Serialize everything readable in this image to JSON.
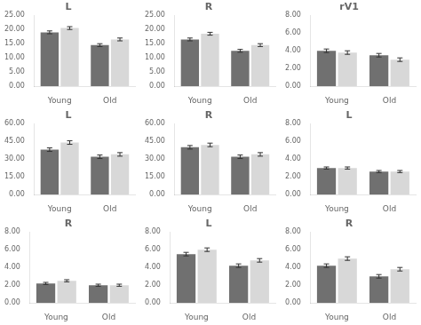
{
  "chart_data": [
    {
      "type": "bar",
      "title": "L",
      "categories": [
        "Young",
        "Old"
      ],
      "series": [
        {
          "color": "#707070",
          "values": [
            19.0,
            14.5
          ],
          "errors": [
            0.5,
            0.5
          ]
        },
        {
          "color": "#d8d8d8",
          "values": [
            20.5,
            16.5
          ],
          "errors": [
            0.5,
            0.5
          ]
        }
      ],
      "ylim": [
        0,
        25
      ],
      "yticks": [
        {
          "value": 0,
          "label": "0.00"
        },
        {
          "value": 5,
          "label": "5.00"
        },
        {
          "value": 10,
          "label": "10.00"
        },
        {
          "value": 15,
          "label": "15.00"
        },
        {
          "value": 20,
          "label": "20.00"
        },
        {
          "value": 25,
          "label": "25.00"
        }
      ],
      "grid": false
    },
    {
      "type": "bar",
      "title": "R",
      "categories": [
        "Young",
        "Old"
      ],
      "series": [
        {
          "color": "#707070",
          "values": [
            16.5,
            12.5
          ],
          "errors": [
            0.5,
            0.5
          ]
        },
        {
          "color": "#d8d8d8",
          "values": [
            18.5,
            14.5
          ],
          "errors": [
            0.5,
            0.5
          ]
        }
      ],
      "ylim": [
        0,
        25
      ],
      "yticks": [
        {
          "value": 0,
          "label": "0.00"
        },
        {
          "value": 5,
          "label": "5.00"
        },
        {
          "value": 10,
          "label": "10.00"
        },
        {
          "value": 15,
          "label": "15.00"
        },
        {
          "value": 20,
          "label": "20.00"
        },
        {
          "value": 25,
          "label": "25.00"
        }
      ],
      "grid": false
    },
    {
      "type": "bar",
      "title": "rV1",
      "categories": [
        "Young",
        "Old"
      ],
      "series": [
        {
          "color": "#707070",
          "values": [
            4.0,
            3.5
          ],
          "errors": [
            0.2,
            0.2
          ]
        },
        {
          "color": "#d8d8d8",
          "values": [
            3.8,
            3.0
          ],
          "errors": [
            0.2,
            0.2
          ]
        }
      ],
      "ylim": [
        0,
        8
      ],
      "yticks": [
        {
          "value": 0,
          "label": "0.00"
        },
        {
          "value": 2,
          "label": "2.00"
        },
        {
          "value": 4,
          "label": "4.00"
        },
        {
          "value": 6,
          "label": "6.00"
        },
        {
          "value": 8,
          "label": "8.00"
        }
      ],
      "grid": false
    },
    {
      "type": "bar",
      "title": "L",
      "categories": [
        "Young",
        "Old"
      ],
      "series": [
        {
          "color": "#707070",
          "values": [
            38.0,
            32.0
          ],
          "errors": [
            1.5,
            1.5
          ]
        },
        {
          "color": "#d8d8d8",
          "values": [
            44.0,
            34.0
          ],
          "errors": [
            1.5,
            1.5
          ]
        }
      ],
      "ylim": [
        0,
        60
      ],
      "yticks": [
        {
          "value": 0,
          "label": "0.00"
        },
        {
          "value": 15,
          "label": "15.00"
        },
        {
          "value": 30,
          "label": "30.00"
        },
        {
          "value": 45,
          "label": "45.00"
        },
        {
          "value": 60,
          "label": "60.00"
        }
      ],
      "grid": false
    },
    {
      "type": "bar",
      "title": "R",
      "categories": [
        "Young",
        "Old"
      ],
      "series": [
        {
          "color": "#707070",
          "values": [
            40.0,
            32.0
          ],
          "errors": [
            1.5,
            1.5
          ]
        },
        {
          "color": "#d8d8d8",
          "values": [
            42.0,
            34.0
          ],
          "errors": [
            1.5,
            1.5
          ]
        }
      ],
      "ylim": [
        0,
        60
      ],
      "yticks": [
        {
          "value": 0,
          "label": "0.00"
        },
        {
          "value": 15,
          "label": "15.00"
        },
        {
          "value": 30,
          "label": "30.00"
        },
        {
          "value": 45,
          "label": "45.00"
        },
        {
          "value": 60,
          "label": "60.00"
        }
      ],
      "grid": false
    },
    {
      "type": "bar",
      "title": "L",
      "categories": [
        "Young",
        "Old"
      ],
      "series": [
        {
          "color": "#707070",
          "values": [
            3.0,
            2.6
          ],
          "errors": [
            0.12,
            0.12
          ]
        },
        {
          "color": "#d8d8d8",
          "values": [
            3.0,
            2.6
          ],
          "errors": [
            0.12,
            0.12
          ]
        }
      ],
      "ylim": [
        0,
        8
      ],
      "yticks": [
        {
          "value": 0,
          "label": "0.00"
        },
        {
          "value": 2,
          "label": "2.00"
        },
        {
          "value": 4,
          "label": "4.00"
        },
        {
          "value": 6,
          "label": "6.00"
        },
        {
          "value": 8,
          "label": "8.00"
        }
      ],
      "grid": false
    },
    {
      "type": "bar",
      "title": "R",
      "categories": [
        "Young",
        "Old"
      ],
      "series": [
        {
          "color": "#707070",
          "values": [
            2.2,
            2.0
          ],
          "errors": [
            0.12,
            0.12
          ]
        },
        {
          "color": "#d8d8d8",
          "values": [
            2.5,
            2.0
          ],
          "errors": [
            0.12,
            0.12
          ]
        }
      ],
      "ylim": [
        0,
        8
      ],
      "yticks": [
        {
          "value": 0,
          "label": "0.00"
        },
        {
          "value": 2,
          "label": "2.00"
        },
        {
          "value": 4,
          "label": "4.00"
        },
        {
          "value": 6,
          "label": "6.00"
        },
        {
          "value": 8,
          "label": "8.00"
        }
      ],
      "grid": false
    },
    {
      "type": "bar",
      "title": "L",
      "categories": [
        "Young",
        "Old"
      ],
      "series": [
        {
          "color": "#707070",
          "values": [
            5.5,
            4.2
          ],
          "errors": [
            0.2,
            0.2
          ]
        },
        {
          "color": "#d8d8d8",
          "values": [
            6.0,
            4.8
          ],
          "errors": [
            0.2,
            0.2
          ]
        }
      ],
      "ylim": [
        0,
        8
      ],
      "yticks": [
        {
          "value": 0,
          "label": "0.00"
        },
        {
          "value": 2,
          "label": "2.00"
        },
        {
          "value": 4,
          "label": "4.00"
        },
        {
          "value": 6,
          "label": "6.00"
        },
        {
          "value": 8,
          "label": "8.00"
        }
      ],
      "grid": false
    },
    {
      "type": "bar",
      "title": "R",
      "categories": [
        "Young",
        "Old"
      ],
      "series": [
        {
          "color": "#707070",
          "values": [
            4.2,
            3.0
          ],
          "errors": [
            0.2,
            0.2
          ]
        },
        {
          "color": "#d8d8d8",
          "values": [
            5.0,
            3.8
          ],
          "errors": [
            0.2,
            0.2
          ]
        }
      ],
      "ylim": [
        0,
        8
      ],
      "yticks": [
        {
          "value": 0,
          "label": "0.00"
        },
        {
          "value": 2,
          "label": "2.00"
        },
        {
          "value": 4,
          "label": "4.00"
        },
        {
          "value": 6,
          "label": "6.00"
        },
        {
          "value": 8,
          "label": "8.00"
        }
      ],
      "grid": false
    }
  ]
}
